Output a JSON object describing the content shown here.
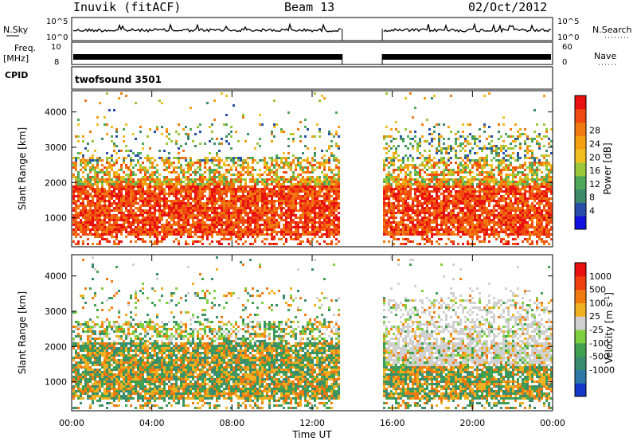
{
  "header": {
    "station": "Inuvik (fitACF)",
    "beam": "Beam 13",
    "date": "02/Oct/2012"
  },
  "strip_panels": {
    "nsky": {
      "label": "N.Sky",
      "ticks": [
        "10^5",
        "10^0"
      ],
      "right_label": "N.Search",
      "right_ticks": [
        "10^5",
        "10^0"
      ]
    },
    "freq": {
      "label_line1": "Freq.",
      "label_line2": "[MHz]",
      "ticks": [
        "10",
        "8"
      ],
      "right_label": "Nave",
      "right_ticks": [
        "60",
        "0"
      ]
    },
    "cpid": {
      "label": "CPID",
      "text": "twofsound 3501"
    }
  },
  "axes": {
    "xlabel": "Time UT",
    "x_ticks": [
      "00:00",
      "04:00",
      "08:00",
      "12:00",
      "16:00",
      "20:00",
      "00:00"
    ],
    "ylabel": "Slant Range [km]",
    "y_ticks": [
      "1000",
      "2000",
      "3000",
      "4000"
    ]
  },
  "power_scale": {
    "label": "Power [dB]",
    "ticks": [
      "4",
      "8",
      "12",
      "16",
      "20",
      "24",
      "28"
    ],
    "colors": [
      "#1010e0",
      "#2850a8",
      "#3d8a6a",
      "#4ea85a",
      "#9ac83a",
      "#f0c020",
      "#f5a010",
      "#f07a10",
      "#f04a10",
      "#e81010"
    ]
  },
  "velocity_scale": {
    "label": "Velocity [m s",
    "label_sup": "-1",
    "label_end": "]",
    "ticks": [
      "1000",
      "500",
      "100",
      "25",
      "-25",
      "-100",
      "-500",
      "-1000"
    ],
    "colors": [
      "#1438c8",
      "#2e78a8",
      "#3a8c70",
      "#3fa050",
      "#7fd040",
      "#d0d0d0",
      "#f0b020",
      "#f07a10",
      "#f04010",
      "#e81010"
    ]
  },
  "chart_data": [
    {
      "type": "heatmap",
      "title": "Power",
      "xlabel": "Time UT",
      "ylabel": "Slant Range [km]",
      "xlim": [
        0,
        24
      ],
      "ylim": [
        180,
        4600
      ],
      "data_gap_hours": [
        13.5,
        15.5
      ],
      "colorbar": {
        "label": "Power [dB]",
        "range": [
          0,
          32
        ]
      }
    },
    {
      "type": "heatmap",
      "title": "Velocity",
      "xlabel": "Time UT",
      "ylabel": "Slant Range [km]",
      "xlim": [
        0,
        24
      ],
      "ylim": [
        180,
        4600
      ],
      "data_gap_hours": [
        13.5,
        15.5
      ],
      "colorbar": {
        "label": "Velocity [m s-1]",
        "range": [
          -1000,
          1000
        ]
      }
    }
  ]
}
